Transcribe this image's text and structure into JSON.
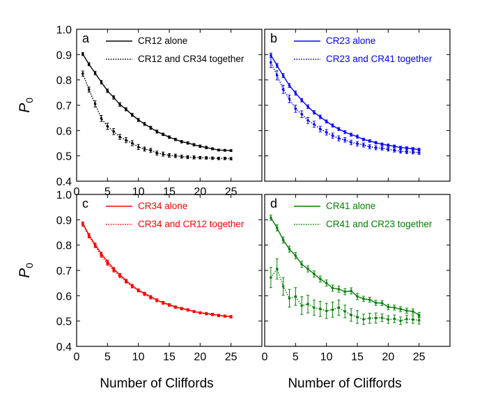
{
  "figure": {
    "x_axis_title": "Number of Cliffords",
    "y_axis_label": "P",
    "y_axis_label_subscript": "0"
  },
  "chart_data": [
    {
      "type": "line",
      "panel": "a",
      "color": "#000000",
      "xlim": [
        0,
        30
      ],
      "ylim": [
        0.4,
        1.0
      ],
      "xticks": [
        "0",
        "5",
        "10",
        "15",
        "20",
        "25"
      ],
      "yticks": [
        "0.4",
        "0.5",
        "0.6",
        "0.7",
        "0.8",
        "0.9",
        "1.0"
      ],
      "series": [
        {
          "name": "CR12 alone",
          "style": "solid",
          "x": [
            1,
            2,
            3,
            4,
            5,
            6,
            7,
            8,
            9,
            10,
            11,
            12,
            13,
            14,
            15,
            16,
            17,
            18,
            19,
            20,
            21,
            22,
            23,
            24,
            25
          ],
          "y": [
            0.902,
            0.862,
            0.827,
            0.791,
            0.757,
            0.731,
            0.703,
            0.684,
            0.662,
            0.642,
            0.626,
            0.611,
            0.596,
            0.585,
            0.574,
            0.565,
            0.556,
            0.551,
            0.544,
            0.538,
            0.533,
            0.528,
            0.523,
            0.522,
            0.521
          ],
          "err": [
            0.006,
            0.006,
            0.007,
            0.007,
            0.007,
            0.007,
            0.007,
            0.006,
            0.006,
            0.006,
            0.006,
            0.006,
            0.006,
            0.005,
            0.005,
            0.005,
            0.005,
            0.005,
            0.005,
            0.005,
            0.005,
            0.004,
            0.004,
            0.004,
            0.004
          ]
        },
        {
          "name": "CR12 and CR34 together",
          "style": "dotted",
          "x": [
            1,
            2,
            3,
            4,
            5,
            6,
            7,
            8,
            9,
            10,
            11,
            12,
            13,
            14,
            15,
            16,
            17,
            18,
            19,
            20,
            21,
            22,
            23,
            24,
            25
          ],
          "y": [
            0.825,
            0.762,
            0.705,
            0.648,
            0.617,
            0.596,
            0.575,
            0.562,
            0.55,
            0.535,
            0.527,
            0.522,
            0.511,
            0.507,
            0.502,
            0.5,
            0.497,
            0.495,
            0.494,
            0.493,
            0.492,
            0.491,
            0.49,
            0.49,
            0.489
          ],
          "err": [
            0.01,
            0.01,
            0.012,
            0.012,
            0.012,
            0.012,
            0.01,
            0.01,
            0.01,
            0.01,
            0.008,
            0.008,
            0.008,
            0.008,
            0.007,
            0.007,
            0.006,
            0.006,
            0.006,
            0.005,
            0.005,
            0.005,
            0.005,
            0.005,
            0.005
          ]
        }
      ]
    },
    {
      "type": "line",
      "panel": "b",
      "color": "#0000ff",
      "xlim": [
        0,
        30
      ],
      "ylim": [
        0.4,
        1.0
      ],
      "series": [
        {
          "name": "CR23 alone",
          "style": "solid",
          "x": [
            1,
            2,
            3,
            4,
            5,
            6,
            7,
            8,
            9,
            10,
            11,
            12,
            13,
            14,
            15,
            16,
            17,
            18,
            19,
            20,
            21,
            22,
            23,
            24,
            25
          ],
          "y": [
            0.898,
            0.857,
            0.817,
            0.778,
            0.748,
            0.72,
            0.694,
            0.672,
            0.654,
            0.636,
            0.62,
            0.606,
            0.594,
            0.584,
            0.576,
            0.565,
            0.559,
            0.552,
            0.546,
            0.542,
            0.538,
            0.533,
            0.531,
            0.528,
            0.525
          ],
          "err": [
            0.008,
            0.008,
            0.008,
            0.008,
            0.008,
            0.007,
            0.007,
            0.007,
            0.007,
            0.006,
            0.006,
            0.006,
            0.006,
            0.006,
            0.006,
            0.005,
            0.005,
            0.005,
            0.005,
            0.005,
            0.005,
            0.005,
            0.005,
            0.005,
            0.005
          ]
        },
        {
          "name": "CR23 and CR41 together",
          "style": "dotted",
          "x": [
            1,
            2,
            3,
            4,
            5,
            6,
            7,
            8,
            9,
            10,
            11,
            12,
            13,
            14,
            15,
            16,
            17,
            18,
            19,
            20,
            21,
            22,
            23,
            24,
            25
          ],
          "y": [
            0.869,
            0.818,
            0.763,
            0.725,
            0.686,
            0.665,
            0.64,
            0.625,
            0.606,
            0.593,
            0.58,
            0.569,
            0.563,
            0.553,
            0.548,
            0.543,
            0.536,
            0.532,
            0.53,
            0.526,
            0.522,
            0.518,
            0.516,
            0.515,
            0.513
          ],
          "err": [
            0.02,
            0.018,
            0.016,
            0.015,
            0.014,
            0.013,
            0.012,
            0.012,
            0.011,
            0.011,
            0.01,
            0.01,
            0.009,
            0.009,
            0.009,
            0.008,
            0.008,
            0.008,
            0.007,
            0.007,
            0.007,
            0.007,
            0.007,
            0.007,
            0.007
          ]
        }
      ]
    },
    {
      "type": "line",
      "panel": "c",
      "color": "#ff0000",
      "xlim": [
        0,
        30
      ],
      "ylim": [
        0.4,
        1.0
      ],
      "xticks": [
        "0",
        "5",
        "10",
        "15",
        "20",
        "25"
      ],
      "yticks": [
        "0.4",
        "0.5",
        "0.6",
        "0.7",
        "0.8",
        "0.9",
        "1.0"
      ],
      "series": [
        {
          "name": "CR34 alone",
          "style": "solid",
          "x": [
            1,
            2,
            3,
            4,
            5,
            6,
            7,
            8,
            9,
            10,
            11,
            12,
            13,
            14,
            15,
            16,
            17,
            18,
            19,
            20,
            21,
            22,
            23,
            24,
            25
          ],
          "y": [
            0.886,
            0.84,
            0.802,
            0.766,
            0.735,
            0.706,
            0.683,
            0.66,
            0.64,
            0.622,
            0.609,
            0.596,
            0.583,
            0.573,
            0.565,
            0.556,
            0.55,
            0.545,
            0.538,
            0.533,
            0.53,
            0.527,
            0.523,
            0.52,
            0.518
          ],
          "err": [
            0.006,
            0.006,
            0.006,
            0.006,
            0.006,
            0.006,
            0.005,
            0.005,
            0.005,
            0.005,
            0.005,
            0.005,
            0.005,
            0.005,
            0.004,
            0.004,
            0.004,
            0.004,
            0.004,
            0.004,
            0.004,
            0.004,
            0.004,
            0.004,
            0.004
          ]
        },
        {
          "name": "CR34 and CR12 together",
          "style": "dotted",
          "x": [
            1,
            2,
            3,
            4,
            5,
            6,
            7,
            8,
            9,
            10,
            11,
            12,
            13,
            14,
            15,
            16,
            17,
            18,
            19,
            20,
            21,
            22,
            23,
            24,
            25
          ],
          "y": [
            0.881,
            0.834,
            0.796,
            0.758,
            0.726,
            0.7,
            0.677,
            0.655,
            0.636,
            0.62,
            0.606,
            0.592,
            0.581,
            0.571,
            0.562,
            0.554,
            0.548,
            0.543,
            0.537,
            0.532,
            0.528,
            0.525,
            0.521,
            0.519,
            0.516
          ],
          "err": [
            0.006,
            0.006,
            0.006,
            0.006,
            0.006,
            0.006,
            0.005,
            0.005,
            0.005,
            0.005,
            0.005,
            0.005,
            0.005,
            0.005,
            0.004,
            0.004,
            0.004,
            0.004,
            0.004,
            0.004,
            0.004,
            0.004,
            0.004,
            0.004,
            0.004
          ]
        }
      ]
    },
    {
      "type": "line",
      "panel": "d",
      "color": "#008000",
      "xlim": [
        0,
        30
      ],
      "ylim": [
        0.4,
        1.0
      ],
      "xticks": [
        "0",
        "5",
        "10",
        "15",
        "20",
        "25"
      ],
      "series": [
        {
          "name": "CR41 alone",
          "style": "solid",
          "x": [
            1,
            2,
            3,
            4,
            5,
            6,
            7,
            8,
            9,
            10,
            11,
            12,
            13,
            14,
            15,
            16,
            17,
            18,
            19,
            20,
            21,
            22,
            23,
            24,
            25
          ],
          "y": [
            0.908,
            0.868,
            0.82,
            0.784,
            0.758,
            0.724,
            0.706,
            0.686,
            0.666,
            0.65,
            0.63,
            0.626,
            0.616,
            0.619,
            0.597,
            0.588,
            0.584,
            0.572,
            0.571,
            0.556,
            0.553,
            0.547,
            0.541,
            0.538,
            0.524
          ],
          "err": [
            0.01,
            0.012,
            0.012,
            0.012,
            0.012,
            0.012,
            0.012,
            0.012,
            0.012,
            0.012,
            0.012,
            0.012,
            0.012,
            0.012,
            0.012,
            0.01,
            0.01,
            0.01,
            0.01,
            0.01,
            0.01,
            0.01,
            0.01,
            0.01,
            0.01
          ]
        },
        {
          "name": "CR41 and CR23 together",
          "style": "dotted",
          "x": [
            1,
            2,
            3,
            4,
            5,
            6,
            7,
            8,
            9,
            10,
            11,
            12,
            13,
            14,
            15,
            16,
            17,
            18,
            19,
            20,
            21,
            22,
            23,
            24,
            25
          ],
          "y": [
            0.672,
            0.706,
            0.637,
            0.59,
            0.597,
            0.561,
            0.567,
            0.553,
            0.548,
            0.54,
            0.545,
            0.553,
            0.538,
            0.524,
            0.516,
            0.507,
            0.511,
            0.512,
            0.513,
            0.506,
            0.509,
            0.501,
            0.508,
            0.506,
            0.503
          ],
          "err": [
            0.04,
            0.04,
            0.035,
            0.035,
            0.035,
            0.035,
            0.035,
            0.03,
            0.03,
            0.03,
            0.03,
            0.03,
            0.025,
            0.025,
            0.025,
            0.02,
            0.02,
            0.02,
            0.015,
            0.015,
            0.015,
            0.015,
            0.015,
            0.015,
            0.015
          ]
        }
      ]
    }
  ]
}
